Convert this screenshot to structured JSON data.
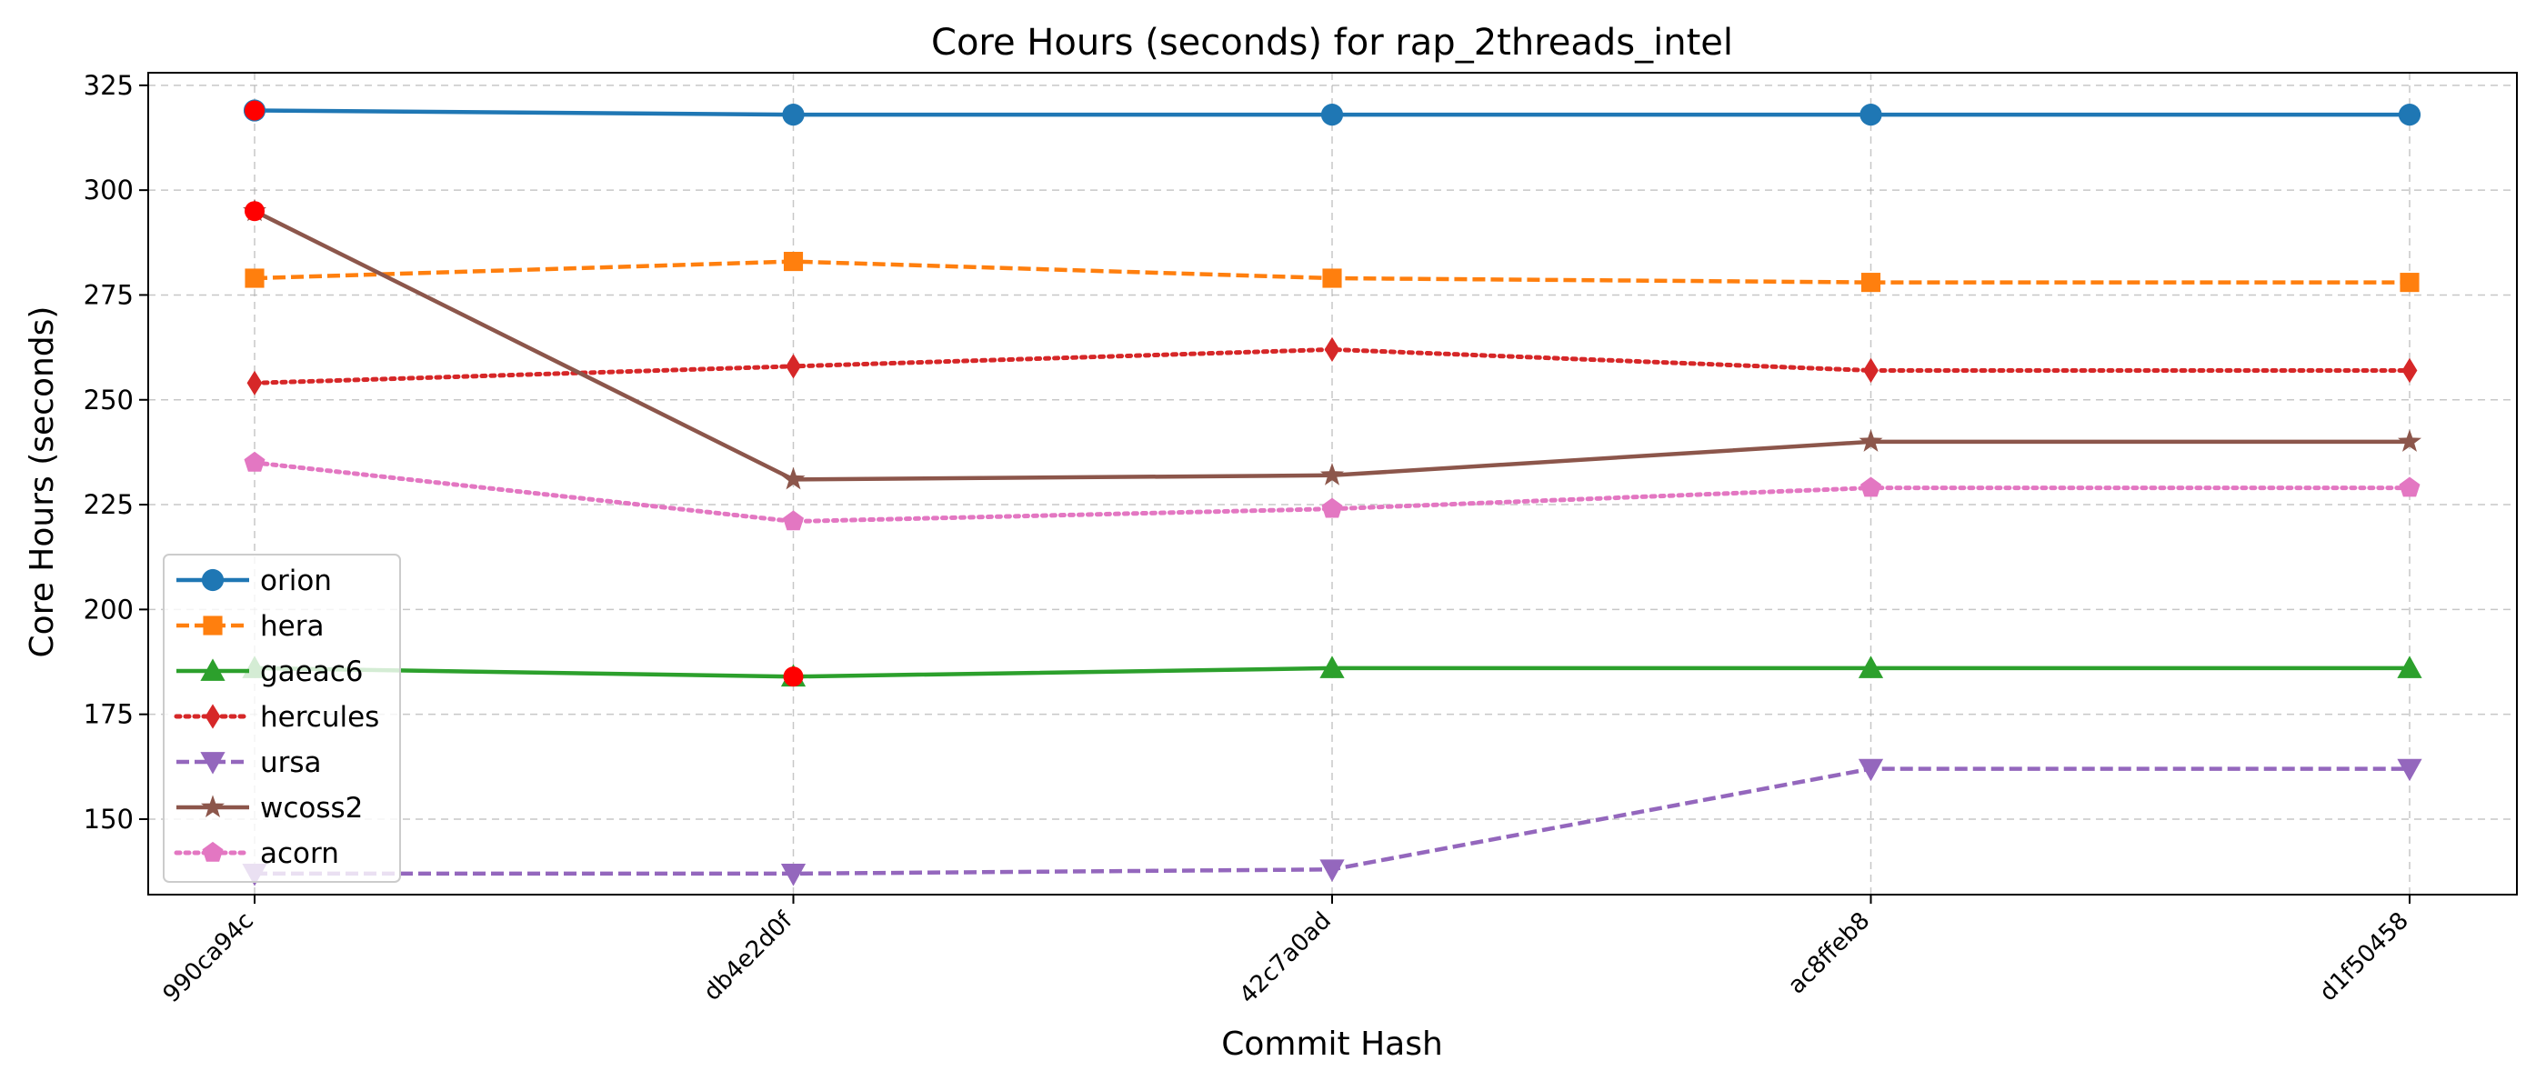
{
  "chart_data": {
    "type": "line",
    "title": "Core Hours (seconds) for rap_2threads_intel",
    "xlabel": "Commit Hash",
    "ylabel": "Core Hours (seconds)",
    "categories": [
      "990ca94c",
      "db4e2d0f",
      "42c7a0ad",
      "ac8ffeb8",
      "d1f50458"
    ],
    "ylim": [
      132,
      328
    ],
    "yticks": [
      150,
      175,
      200,
      225,
      250,
      275,
      300,
      325
    ],
    "grid": true,
    "legend_position": "lower-left",
    "series": [
      {
        "name": "orion",
        "values": [
          319,
          318,
          318,
          318,
          318
        ],
        "color": "#1f77b4",
        "dash": "solid",
        "marker": "circle"
      },
      {
        "name": "hera",
        "values": [
          279,
          283,
          279,
          278,
          278
        ],
        "color": "#ff7f0e",
        "dash": "dashed",
        "marker": "square"
      },
      {
        "name": "gaeac6",
        "values": [
          186,
          184,
          186,
          186,
          186
        ],
        "color": "#2ca02c",
        "dash": "solid",
        "marker": "triangle-up"
      },
      {
        "name": "hercules",
        "values": [
          254,
          258,
          262,
          257,
          257
        ],
        "color": "#d62728",
        "dash": "dotted",
        "marker": "thin-diamond"
      },
      {
        "name": "ursa",
        "values": [
          137,
          137,
          138,
          162,
          162
        ],
        "color": "#9467bd",
        "dash": "dashed",
        "marker": "triangle-down"
      },
      {
        "name": "wcoss2",
        "values": [
          295,
          231,
          232,
          240,
          240
        ],
        "color": "#8c564b",
        "dash": "solid",
        "marker": "star"
      },
      {
        "name": "acorn",
        "values": [
          235,
          221,
          224,
          229,
          229
        ],
        "color": "#e377c2",
        "dash": "dotted",
        "marker": "pentagon"
      }
    ],
    "highlighted_points": [
      {
        "series": "orion",
        "category": "990ca94c",
        "value": 319
      },
      {
        "series": "wcoss2",
        "category": "990ca94c",
        "value": 295
      },
      {
        "series": "gaeac6",
        "category": "db4e2d0f",
        "value": 184
      }
    ],
    "highlight_color": "#ff0000"
  }
}
